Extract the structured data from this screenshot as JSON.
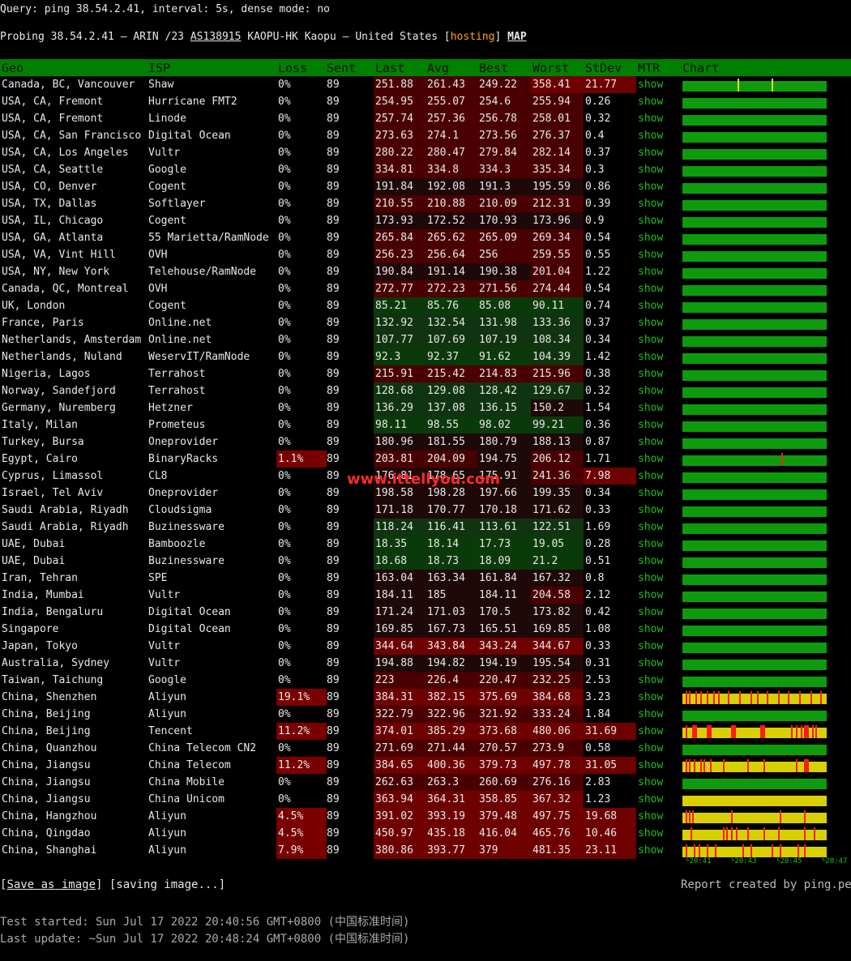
{
  "header": {
    "query_line": "Query: ping 38.54.2.41, interval: 5s, dense mode: no",
    "probing_prefix": "Probing 38.54.2.41 – ARIN /23 ",
    "asn": "AS138915",
    "probing_mid": " KAOPU-HK Kaopu – United States [",
    "tag": "hosting",
    "probing_close": "] ",
    "map": "MAP"
  },
  "columns": [
    "Geo",
    "ISP",
    "Loss",
    "Sent",
    "Last",
    "Avg",
    "Best",
    "Worst",
    "StDev",
    "MTR",
    "Chart"
  ],
  "rows": [
    {
      "geo": "Canada, BC, Vancouver",
      "isp": "Shaw",
      "loss": "0%",
      "sent": "89",
      "last": "251.88",
      "avg": "261.43",
      "best": "249.22",
      "worst": "358.41",
      "stdev": "21.77",
      "mtr": "show"
    },
    {
      "geo": "USA, CA, Fremont",
      "isp": "Hurricane FMT2",
      "loss": "0%",
      "sent": "89",
      "last": "254.95",
      "avg": "255.07",
      "best": "254.6",
      "worst": "255.94",
      "stdev": "0.26",
      "mtr": "show"
    },
    {
      "geo": "USA, CA, Fremont",
      "isp": "Linode",
      "loss": "0%",
      "sent": "89",
      "last": "257.74",
      "avg": "257.36",
      "best": "256.78",
      "worst": "258.01",
      "stdev": "0.32",
      "mtr": "show"
    },
    {
      "geo": "USA, CA, San Francisco",
      "isp": "Digital Ocean",
      "loss": "0%",
      "sent": "89",
      "last": "273.63",
      "avg": "274.1",
      "best": "273.56",
      "worst": "276.37",
      "stdev": "0.4",
      "mtr": "show"
    },
    {
      "geo": "USA, CA, Los Angeles",
      "isp": "Vultr",
      "loss": "0%",
      "sent": "89",
      "last": "280.22",
      "avg": "280.47",
      "best": "279.84",
      "worst": "282.14",
      "stdev": "0.37",
      "mtr": "show"
    },
    {
      "geo": "USA, CA, Seattle",
      "isp": "Google",
      "loss": "0%",
      "sent": "89",
      "last": "334.81",
      "avg": "334.8",
      "best": "334.3",
      "worst": "335.34",
      "stdev": "0.3",
      "mtr": "show"
    },
    {
      "geo": "USA, CO, Denver",
      "isp": "Cogent",
      "loss": "0%",
      "sent": "89",
      "last": "191.84",
      "avg": "192.08",
      "best": "191.3",
      "worst": "195.59",
      "stdev": "0.86",
      "mtr": "show"
    },
    {
      "geo": "USA, TX, Dallas",
      "isp": "Softlayer",
      "loss": "0%",
      "sent": "89",
      "last": "210.55",
      "avg": "210.88",
      "best": "210.09",
      "worst": "212.31",
      "stdev": "0.39",
      "mtr": "show"
    },
    {
      "geo": "USA, IL, Chicago",
      "isp": "Cogent",
      "loss": "0%",
      "sent": "89",
      "last": "173.93",
      "avg": "172.52",
      "best": "170.93",
      "worst": "173.96",
      "stdev": "0.9",
      "mtr": "show"
    },
    {
      "geo": "USA, GA, Atlanta",
      "isp": "55 Marietta/RamNode",
      "loss": "0%",
      "sent": "89",
      "last": "265.84",
      "avg": "265.62",
      "best": "265.09",
      "worst": "269.34",
      "stdev": "0.54",
      "mtr": "show"
    },
    {
      "geo": "USA, VA, Vint Hill",
      "isp": "OVH",
      "loss": "0%",
      "sent": "89",
      "last": "256.23",
      "avg": "256.64",
      "best": "256",
      "worst": "259.55",
      "stdev": "0.55",
      "mtr": "show"
    },
    {
      "geo": "USA, NY, New York",
      "isp": "Telehouse/RamNode",
      "loss": "0%",
      "sent": "89",
      "last": "190.84",
      "avg": "191.14",
      "best": "190.38",
      "worst": "201.04",
      "stdev": "1.22",
      "mtr": "show"
    },
    {
      "geo": "Canada, QC, Montreal",
      "isp": "OVH",
      "loss": "0%",
      "sent": "89",
      "last": "272.77",
      "avg": "272.23",
      "best": "271.56",
      "worst": "274.44",
      "stdev": "0.54",
      "mtr": "show"
    },
    {
      "geo": "UK, London",
      "isp": "Cogent",
      "loss": "0%",
      "sent": "89",
      "last": "85.21",
      "avg": "85.76",
      "best": "85.08",
      "worst": "90.11",
      "stdev": "0.74",
      "mtr": "show"
    },
    {
      "geo": "France, Paris",
      "isp": "Online.net",
      "loss": "0%",
      "sent": "89",
      "last": "132.92",
      "avg": "132.54",
      "best": "131.98",
      "worst": "133.36",
      "stdev": "0.37",
      "mtr": "show"
    },
    {
      "geo": "Netherlands, Amsterdam",
      "isp": "Online.net",
      "loss": "0%",
      "sent": "89",
      "last": "107.77",
      "avg": "107.69",
      "best": "107.19",
      "worst": "108.34",
      "stdev": "0.34",
      "mtr": "show"
    },
    {
      "geo": "Netherlands, Nuland",
      "isp": "WeservIT/RamNode",
      "loss": "0%",
      "sent": "89",
      "last": "92.3",
      "avg": "92.37",
      "best": "91.62",
      "worst": "104.39",
      "stdev": "1.42",
      "mtr": "show"
    },
    {
      "geo": "Nigeria, Lagos",
      "isp": "Terrahost",
      "loss": "0%",
      "sent": "89",
      "last": "215.91",
      "avg": "215.42",
      "best": "214.83",
      "worst": "215.96",
      "stdev": "0.38",
      "mtr": "show"
    },
    {
      "geo": "Norway, Sandefjord",
      "isp": "Terrahost",
      "loss": "0%",
      "sent": "89",
      "last": "128.68",
      "avg": "129.08",
      "best": "128.42",
      "worst": "129.67",
      "stdev": "0.32",
      "mtr": "show"
    },
    {
      "geo": "Germany, Nuremberg",
      "isp": "Hetzner",
      "loss": "0%",
      "sent": "89",
      "last": "136.29",
      "avg": "137.08",
      "best": "136.15",
      "worst": "150.2",
      "stdev": "1.54",
      "mtr": "show"
    },
    {
      "geo": "Italy, Milan",
      "isp": "Prometeus",
      "loss": "0%",
      "sent": "89",
      "last": "98.11",
      "avg": "98.55",
      "best": "98.02",
      "worst": "99.21",
      "stdev": "0.36",
      "mtr": "show"
    },
    {
      "geo": "Turkey, Bursa",
      "isp": "Oneprovider",
      "loss": "0%",
      "sent": "89",
      "last": "180.96",
      "avg": "181.55",
      "best": "180.79",
      "worst": "188.13",
      "stdev": "0.87",
      "mtr": "show"
    },
    {
      "geo": "Egypt, Cairo",
      "isp": "BinaryRacks",
      "loss": "1.1%",
      "sent": "89",
      "last": "203.81",
      "avg": "204.09",
      "best": "194.75",
      "worst": "206.12",
      "stdev": "1.71",
      "mtr": "show"
    },
    {
      "geo": "Cyprus, Limassol",
      "isp": "CL8",
      "loss": "0%",
      "sent": "89",
      "last": "176.81",
      "avg": "178.65",
      "best": "175.91",
      "worst": "241.36",
      "stdev": "7.98",
      "mtr": "show"
    },
    {
      "geo": "Israel, Tel Aviv",
      "isp": "Oneprovider",
      "loss": "0%",
      "sent": "89",
      "last": "198.58",
      "avg": "198.28",
      "best": "197.66",
      "worst": "199.35",
      "stdev": "0.34",
      "mtr": "show"
    },
    {
      "geo": "Saudi Arabia, Riyadh",
      "isp": "Cloudsigma",
      "loss": "0%",
      "sent": "89",
      "last": "171.18",
      "avg": "170.77",
      "best": "170.18",
      "worst": "171.62",
      "stdev": "0.33",
      "mtr": "show"
    },
    {
      "geo": "Saudi Arabia, Riyadh",
      "isp": "Buzinessware",
      "loss": "0%",
      "sent": "89",
      "last": "118.24",
      "avg": "116.41",
      "best": "113.61",
      "worst": "122.51",
      "stdev": "1.69",
      "mtr": "show"
    },
    {
      "geo": "UAE, Dubai",
      "isp": "Bamboozle",
      "loss": "0%",
      "sent": "89",
      "last": "18.35",
      "avg": "18.14",
      "best": "17.73",
      "worst": "19.05",
      "stdev": "0.28",
      "mtr": "show"
    },
    {
      "geo": "UAE, Dubai",
      "isp": "Buzinessware",
      "loss": "0%",
      "sent": "89",
      "last": "18.68",
      "avg": "18.73",
      "best": "18.09",
      "worst": "21.2",
      "stdev": "0.51",
      "mtr": "show"
    },
    {
      "geo": "Iran, Tehran",
      "isp": "SPE",
      "loss": "0%",
      "sent": "89",
      "last": "163.04",
      "avg": "163.34",
      "best": "161.84",
      "worst": "167.32",
      "stdev": "0.8",
      "mtr": "show"
    },
    {
      "geo": "India, Mumbai",
      "isp": "Vultr",
      "loss": "0%",
      "sent": "89",
      "last": "184.11",
      "avg": "185",
      "best": "184.11",
      "worst": "204.58",
      "stdev": "2.12",
      "mtr": "show"
    },
    {
      "geo": "India, Bengaluru",
      "isp": "Digital Ocean",
      "loss": "0%",
      "sent": "89",
      "last": "171.24",
      "avg": "171.03",
      "best": "170.5",
      "worst": "173.82",
      "stdev": "0.42",
      "mtr": "show"
    },
    {
      "geo": "Singapore",
      "isp": "Digital Ocean",
      "loss": "0%",
      "sent": "89",
      "last": "169.85",
      "avg": "167.73",
      "best": "165.51",
      "worst": "169.85",
      "stdev": "1.08",
      "mtr": "show"
    },
    {
      "geo": "Japan, Tokyo",
      "isp": "Vultr",
      "loss": "0%",
      "sent": "89",
      "last": "344.64",
      "avg": "343.84",
      "best": "343.24",
      "worst": "344.67",
      "stdev": "0.33",
      "mtr": "show"
    },
    {
      "geo": "Australia, Sydney",
      "isp": "Vultr",
      "loss": "0%",
      "sent": "89",
      "last": "194.88",
      "avg": "194.82",
      "best": "194.19",
      "worst": "195.54",
      "stdev": "0.31",
      "mtr": "show"
    },
    {
      "geo": "Taiwan, Taichung",
      "isp": "Google",
      "loss": "0%",
      "sent": "89",
      "last": "223",
      "avg": "226.4",
      "best": "220.47",
      "worst": "232.25",
      "stdev": "2.53",
      "mtr": "show"
    },
    {
      "geo": "China, Shenzhen",
      "isp": "Aliyun",
      "loss": "19.1%",
      "sent": "89",
      "last": "384.31",
      "avg": "382.15",
      "best": "375.69",
      "worst": "384.68",
      "stdev": "3.23",
      "mtr": "show"
    },
    {
      "geo": "China, Beijing",
      "isp": "Aliyun",
      "loss": "0%",
      "sent": "89",
      "last": "322.79",
      "avg": "322.96",
      "best": "321.92",
      "worst": "333.24",
      "stdev": "1.84",
      "mtr": "show"
    },
    {
      "geo": "China, Beijing",
      "isp": "Tencent",
      "loss": "11.2%",
      "sent": "89",
      "last": "374.01",
      "avg": "385.29",
      "best": "373.68",
      "worst": "480.06",
      "stdev": "31.69",
      "mtr": "show"
    },
    {
      "geo": "China, Quanzhou",
      "isp": "China Telecom CN2",
      "loss": "0%",
      "sent": "89",
      "last": "271.69",
      "avg": "271.44",
      "best": "270.57",
      "worst": "273.9",
      "stdev": "0.58",
      "mtr": "show"
    },
    {
      "geo": "China, Jiangsu",
      "isp": "China Telecom",
      "loss": "11.2%",
      "sent": "89",
      "last": "384.65",
      "avg": "400.36",
      "best": "379.73",
      "worst": "497.78",
      "stdev": "31.05",
      "mtr": "show"
    },
    {
      "geo": "China, Jiangsu",
      "isp": "China Mobile",
      "loss": "0%",
      "sent": "89",
      "last": "262.63",
      "avg": "263.3",
      "best": "260.69",
      "worst": "276.16",
      "stdev": "2.83",
      "mtr": "show"
    },
    {
      "geo": "China, Jiangsu",
      "isp": "China Unicom",
      "loss": "0%",
      "sent": "89",
      "last": "363.94",
      "avg": "364.31",
      "best": "358.85",
      "worst": "367.32",
      "stdev": "1.23",
      "mtr": "show"
    },
    {
      "geo": "China, Hangzhou",
      "isp": "Aliyun",
      "loss": "4.5%",
      "sent": "89",
      "last": "391.02",
      "avg": "393.19",
      "best": "379.48",
      "worst": "497.75",
      "stdev": "19.68",
      "mtr": "show"
    },
    {
      "geo": "China, Qingdao",
      "isp": "Aliyun",
      "loss": "4.5%",
      "sent": "89",
      "last": "450.97",
      "avg": "435.18",
      "best": "416.04",
      "worst": "465.76",
      "stdev": "10.46",
      "mtr": "show"
    },
    {
      "geo": "China, Shanghai",
      "isp": "Aliyun",
      "loss": "7.9%",
      "sent": "89",
      "last": "380.86",
      "avg": "393.77",
      "best": "379",
      "worst": "481.35",
      "stdev": "23.11",
      "mtr": "show"
    }
  ],
  "chart_axis_labels": [
    "└20:41",
    "└20:43",
    "└20:45",
    "└20:47"
  ],
  "watermark": "www.ittellyou.com",
  "footer": {
    "save_open": "[",
    "save_label": "Save as image",
    "save_close": "] [saving image...]",
    "credit": "Report created by ping.pe",
    "test_started": "Test started: Sun Jul 17 2022 20:40:56 GMT+0800 (中国标准时间)",
    "last_update": "Last update: ~Sun Jul 17 2022 20:48:24 GMT+0800 (中国标准时间)"
  },
  "colors": {
    "header_green": "#008000",
    "loss_red": "#7a0000",
    "latency_dark_red": "#4a0000",
    "latency_red": "#6e0000",
    "latency_green": "#0a3a0a",
    "latency_dark_green": "#103410",
    "chart_green": "#0d9b0d",
    "chart_yellow": "#d8d000",
    "spike_red": "#ff1a1a",
    "tag_orange": "#ffa500"
  }
}
